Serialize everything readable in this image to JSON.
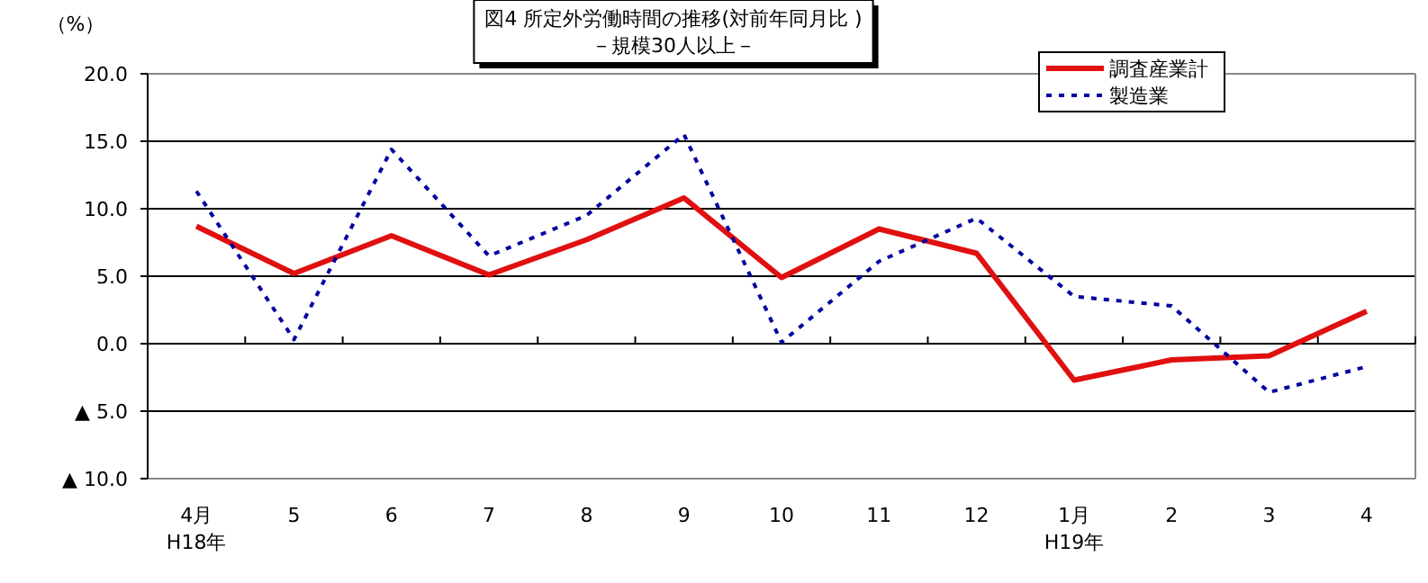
{
  "chart_data": {
    "type": "line",
    "title": "図4  所定外労働時間の推移(対前年同月比 )",
    "subtitle": "－規模30人以上－",
    "ylabel": "（%）",
    "categories": [
      "4月\nH18年",
      "5",
      "6",
      "7",
      "8",
      "9",
      "10",
      "11",
      "12",
      "1月\nH19年",
      "2",
      "3",
      "4"
    ],
    "series": [
      {
        "name": "調査産業計",
        "color": "#e01010",
        "line_style": "solid",
        "values": [
          8.7,
          5.2,
          8.0,
          5.1,
          7.7,
          10.8,
          4.9,
          8.5,
          6.7,
          -2.7,
          -1.2,
          -0.9,
          2.4
        ]
      },
      {
        "name": "製造業",
        "color": "#0000a0",
        "line_style": "dotted",
        "values": [
          11.3,
          0.3,
          14.4,
          6.5,
          9.5,
          15.5,
          0.1,
          6.1,
          9.3,
          3.5,
          2.8,
          -3.6,
          -1.7
        ]
      }
    ],
    "ylim": [
      -10,
      20
    ],
    "yticks": [
      {
        "value": -10,
        "label": "▲ 10.0"
      },
      {
        "value": -5,
        "label": "▲ 5.0"
      },
      {
        "value": 0,
        "label": "0.0"
      },
      {
        "value": 5,
        "label": "5.0"
      },
      {
        "value": 10,
        "label": "10.0"
      },
      {
        "value": 15,
        "label": "15.0"
      },
      {
        "value": 20,
        "label": "20.0"
      }
    ],
    "grid": "y",
    "legend": "top right",
    "marker": "none"
  }
}
